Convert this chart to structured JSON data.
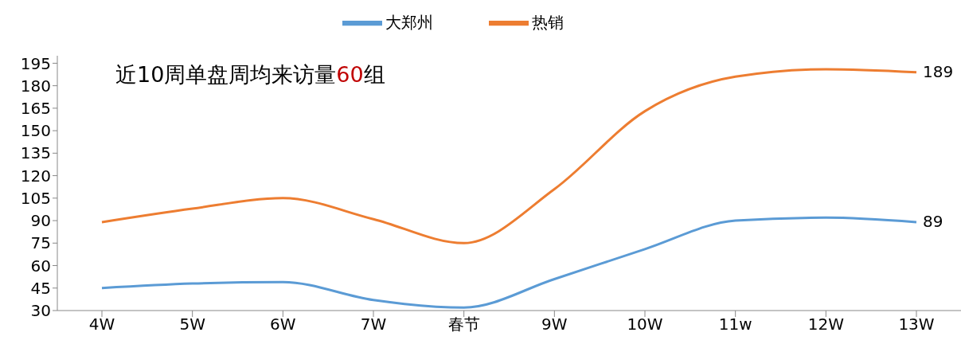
{
  "chart_data": {
    "type": "line",
    "annotations": [
      "近10周单盘周均来访量60组"
    ],
    "categories": [
      "4W",
      "5W",
      "6W",
      "7W",
      "春节",
      "9W",
      "10W",
      "11w",
      "12W",
      "13W"
    ],
    "series": [
      {
        "name": "大郑州",
        "color": "#5b9bd5",
        "values": [
          45,
          48,
          49,
          37,
          32,
          51,
          71,
          90,
          92,
          89
        ],
        "value_labels": [
          null,
          null,
          null,
          null,
          null,
          null,
          null,
          null,
          null,
          "89"
        ]
      },
      {
        "name": "热销",
        "color": "#ed7d31",
        "values": [
          89,
          98,
          105,
          91,
          75,
          111,
          163,
          186,
          191,
          189
        ],
        "value_labels": [
          null,
          null,
          null,
          null,
          null,
          null,
          null,
          null,
          null,
          "189"
        ]
      }
    ],
    "ylim": [
      30,
      200
    ],
    "yticks": [
      30,
      45,
      60,
      75,
      90,
      105,
      120,
      135,
      150,
      165,
      180,
      195
    ],
    "grid": false,
    "legend": "top",
    "marker": "none",
    "line_style": "solid"
  }
}
